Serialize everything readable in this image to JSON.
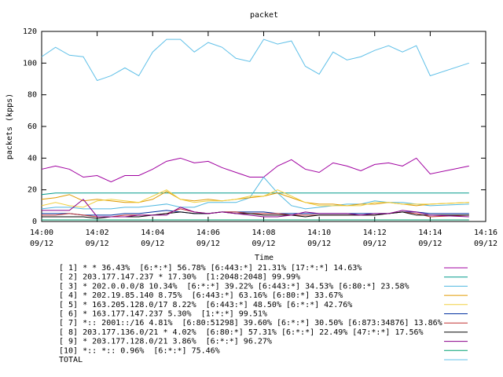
{
  "chart_data": {
    "type": "line",
    "title": "packet",
    "xlabel": "Time",
    "ylabel": "packets (kpps)",
    "x": [
      0,
      0.5,
      1,
      1.5,
      2,
      2.5,
      3,
      3.5,
      4,
      4.5,
      5,
      5.5,
      6,
      6.5,
      7,
      7.5,
      8,
      8.5,
      9,
      9.5,
      10,
      10.5,
      11,
      11.5,
      12,
      12.5,
      13,
      13.5,
      14,
      15.4
    ],
    "xlim": [
      0,
      16
    ],
    "xticks": [
      {
        "value": 0,
        "label": "14:00",
        "date": "09/12"
      },
      {
        "value": 2,
        "label": "14:02",
        "date": "09/12"
      },
      {
        "value": 4,
        "label": "14:04",
        "date": "09/12"
      },
      {
        "value": 6,
        "label": "14:06",
        "date": "09/12"
      },
      {
        "value": 8,
        "label": "14:08",
        "date": "09/12"
      },
      {
        "value": 10,
        "label": "14:10",
        "date": "09/12"
      },
      {
        "value": 12,
        "label": "14:12",
        "date": "09/12"
      },
      {
        "value": 14,
        "label": "14:14",
        "date": "09/12"
      },
      {
        "value": 16,
        "label": "14:16",
        "date": "09/12"
      }
    ],
    "ylim": [
      0,
      120
    ],
    "yticks": [
      0,
      20,
      40,
      60,
      80,
      100,
      120
    ],
    "series": [
      {
        "name": "[ 1] * * 36.43%  [6:*:*] 56.78% [6:443:*] 21.31% [17:*:*] 14.63%",
        "color": "#a000a0",
        "values": [
          33,
          35,
          33,
          28,
          29,
          25,
          29,
          29,
          33,
          38,
          40,
          37,
          38,
          34,
          31,
          28,
          28,
          35,
          39,
          33,
          31,
          37,
          35,
          32,
          36,
          37,
          35,
          40,
          30,
          35
        ]
      },
      {
        "name": "[ 2] 203.177.147.237 * 17.30%  [1:2048:2048] 99.99%",
        "color": "#009a8a",
        "values": [
          17,
          18,
          18,
          18,
          18,
          18,
          18,
          18,
          18,
          18,
          18,
          18,
          18,
          18,
          18,
          18,
          18,
          18,
          18,
          18,
          18,
          18,
          18,
          18,
          18,
          18,
          18,
          18,
          18,
          18
        ]
      },
      {
        "name": "[ 3] * 202.0.0.0/8 10.34%  [6:*:*] 39.22% [6:443:*] 34.53% [6:80:*] 23.58%",
        "color": "#50b8e0",
        "values": [
          8,
          9,
          9,
          8,
          8,
          8,
          9,
          9,
          10,
          11,
          9,
          9,
          12,
          12,
          12,
          15,
          28,
          18,
          10,
          8,
          9,
          10,
          11,
          11,
          13,
          12,
          12,
          11,
          10,
          11
        ]
      },
      {
        "name": "[ 4] * 202.19.85.140 8.75%  [6:443:*] 63.16% [6:80:*] 33.67%",
        "color": "#e09a00",
        "values": [
          14,
          15,
          17,
          13,
          14,
          13,
          12,
          12,
          14,
          19,
          14,
          13,
          14,
          13,
          14,
          15,
          16,
          18,
          15,
          12,
          11,
          11,
          10,
          11,
          11,
          12,
          11,
          10,
          11,
          12
        ]
      },
      {
        "name": "[ 5] * 163.205.128.0/17 8.22%  [6:443:*] 48.50% [6:*:*] 42.76%",
        "color": "#f0d040",
        "values": [
          10,
          12,
          10,
          9,
          13,
          14,
          13,
          12,
          16,
          20,
          14,
          12,
          13,
          13,
          14,
          16,
          16,
          20,
          16,
          12,
          10,
          10,
          10,
          10,
          12,
          12,
          11,
          11,
          11,
          12
        ]
      },
      {
        "name": "[ 6] * 163.177.147.237 5.30%  [1:*:*] 99.51%",
        "color": "#0030a0",
        "values": [
          5,
          5,
          5,
          4,
          4,
          4,
          5,
          5,
          6,
          7,
          6,
          5,
          5,
          6,
          6,
          6,
          6,
          5,
          5,
          5,
          5,
          5,
          5,
          5,
          5,
          5,
          6,
          6,
          5,
          5
        ]
      },
      {
        "name": "[ 7] *:: 2001::/16 4.81%  [6:80:51298] 39.60% [6:*:*] 30.50% [6:873:34876] 13.86%",
        "color": "#c03030",
        "values": [
          4,
          4,
          5,
          4,
          3,
          3,
          4,
          4,
          4,
          5,
          8,
          6,
          5,
          6,
          6,
          5,
          5,
          5,
          4,
          4,
          4,
          4,
          4,
          4,
          4,
          5,
          6,
          5,
          3,
          4
        ]
      },
      {
        "name": "[ 8] 203.177.136.0/21 * 4.02%  [6:80:*] 57.31% [6:*:*] 22.49% [47:*:*] 17.56%",
        "color": "#000000",
        "values": [
          3,
          3,
          3,
          3,
          2,
          3,
          3,
          3,
          4,
          5,
          6,
          5,
          5,
          6,
          5,
          5,
          4,
          4,
          4,
          3,
          4,
          4,
          4,
          4,
          4,
          5,
          6,
          4,
          4,
          4
        ]
      },
      {
        "name": "[ 9] * 203.177.128.0/21 3.86%  [6:*:*] 96.27%",
        "color": "#8a008a",
        "values": [
          7,
          7,
          7,
          14,
          3,
          3,
          3,
          4,
          4,
          4,
          9,
          6,
          5,
          6,
          5,
          4,
          3,
          3,
          4,
          6,
          5,
          5,
          5,
          4,
          5,
          5,
          7,
          6,
          4,
          3
        ]
      },
      {
        "name": "[10] *:: *:: 0.96%  [6:*:*] 75.46%",
        "color": "#00a070",
        "values": [
          1,
          1,
          1,
          1,
          1,
          1,
          1,
          1,
          1,
          1,
          1,
          1,
          1,
          1,
          1,
          1,
          1,
          1,
          1,
          1,
          1,
          1,
          1,
          1,
          1,
          1,
          1,
          1,
          1,
          1
        ]
      },
      {
        "name": "TOTAL",
        "color": "#60c0e8",
        "values": [
          104,
          110,
          105,
          104,
          89,
          92,
          97,
          92,
          107,
          115,
          115,
          107,
          113,
          110,
          103,
          101,
          115,
          112,
          114,
          98,
          93,
          107,
          102,
          104,
          108,
          111,
          107,
          111,
          92,
          100
        ]
      }
    ]
  }
}
